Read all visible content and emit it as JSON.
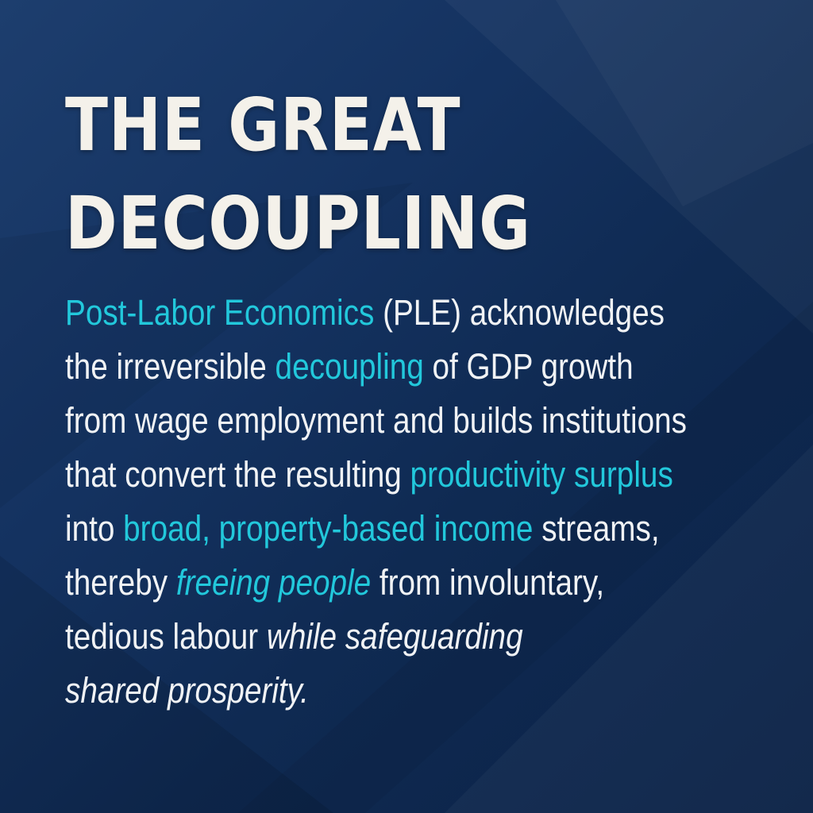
{
  "title": {
    "line1": "THE GREAT",
    "line2": "DECOUPLING"
  },
  "paragraph": {
    "l1": {
      "a": "Post-Labor Economics",
      "b": " (PLE) acknowledges"
    },
    "l2": {
      "a": "the irreversible ",
      "b": "decoupling",
      "c": " of GDP growth"
    },
    "l3": {
      "a": "from wage employment and builds institutions"
    },
    "l4": {
      "a": "that convert the resulting ",
      "b": "productivity surplus"
    },
    "l5": {
      "a": "into ",
      "b": "broad, property-based income",
      "c": " streams,"
    },
    "l6": {
      "a": "thereby ",
      "b": "freeing people",
      "c": " from involuntary,"
    },
    "l7": {
      "a": "tedious labour ",
      "b": "while safeguarding"
    },
    "l8": {
      "a": "shared prosperity."
    }
  },
  "colors": {
    "background": "#143260",
    "title": "#f4f1ea",
    "body_text": "#f1f3f5",
    "highlight": "#22c8db"
  }
}
